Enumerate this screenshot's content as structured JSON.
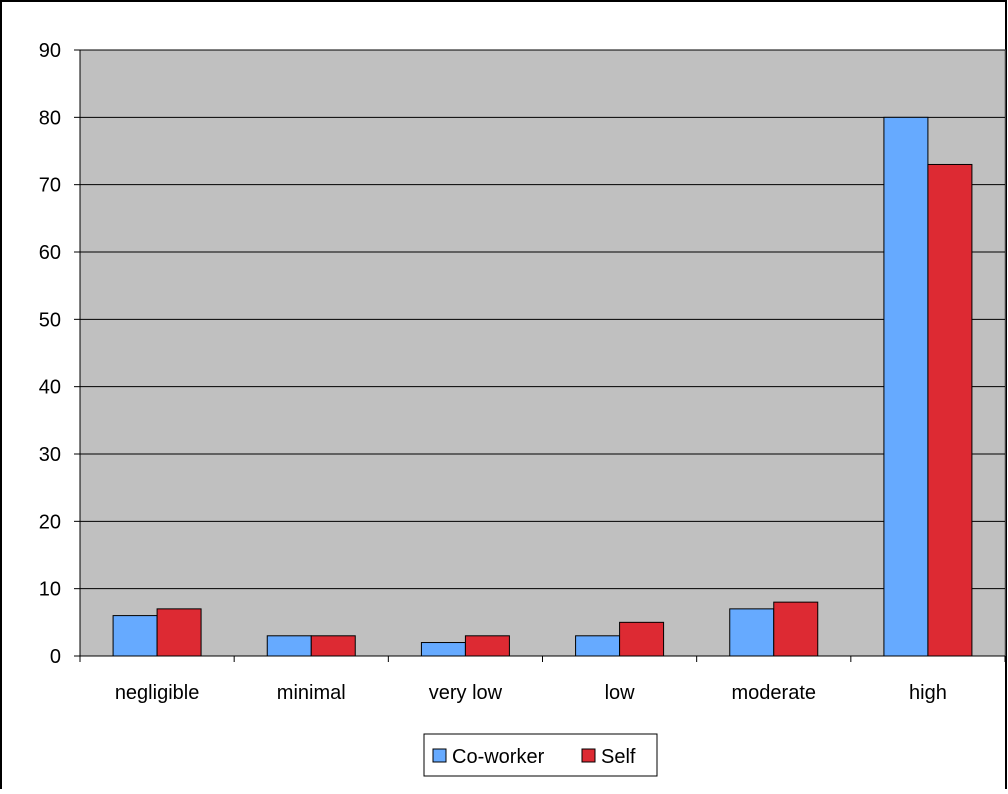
{
  "chart_data": {
    "type": "bar",
    "title": "",
    "xlabel": "",
    "ylabel": "",
    "categories": [
      "negligible",
      "minimal",
      "very low",
      "low",
      "moderate",
      "high"
    ],
    "series": [
      {
        "name": "Co-worker",
        "color": "#66aaff",
        "values": [
          6,
          3,
          2,
          3,
          7,
          80
        ]
      },
      {
        "name": "Self",
        "color": "#dd2a33",
        "values": [
          7,
          3,
          3,
          5,
          8,
          73
        ]
      }
    ],
    "ylim": [
      0,
      90
    ],
    "yticks": [
      0,
      10,
      20,
      30,
      40,
      50,
      60,
      70,
      80,
      90
    ],
    "grid": true,
    "plot_background": "#c0c0c0",
    "legend_position": "bottom"
  }
}
